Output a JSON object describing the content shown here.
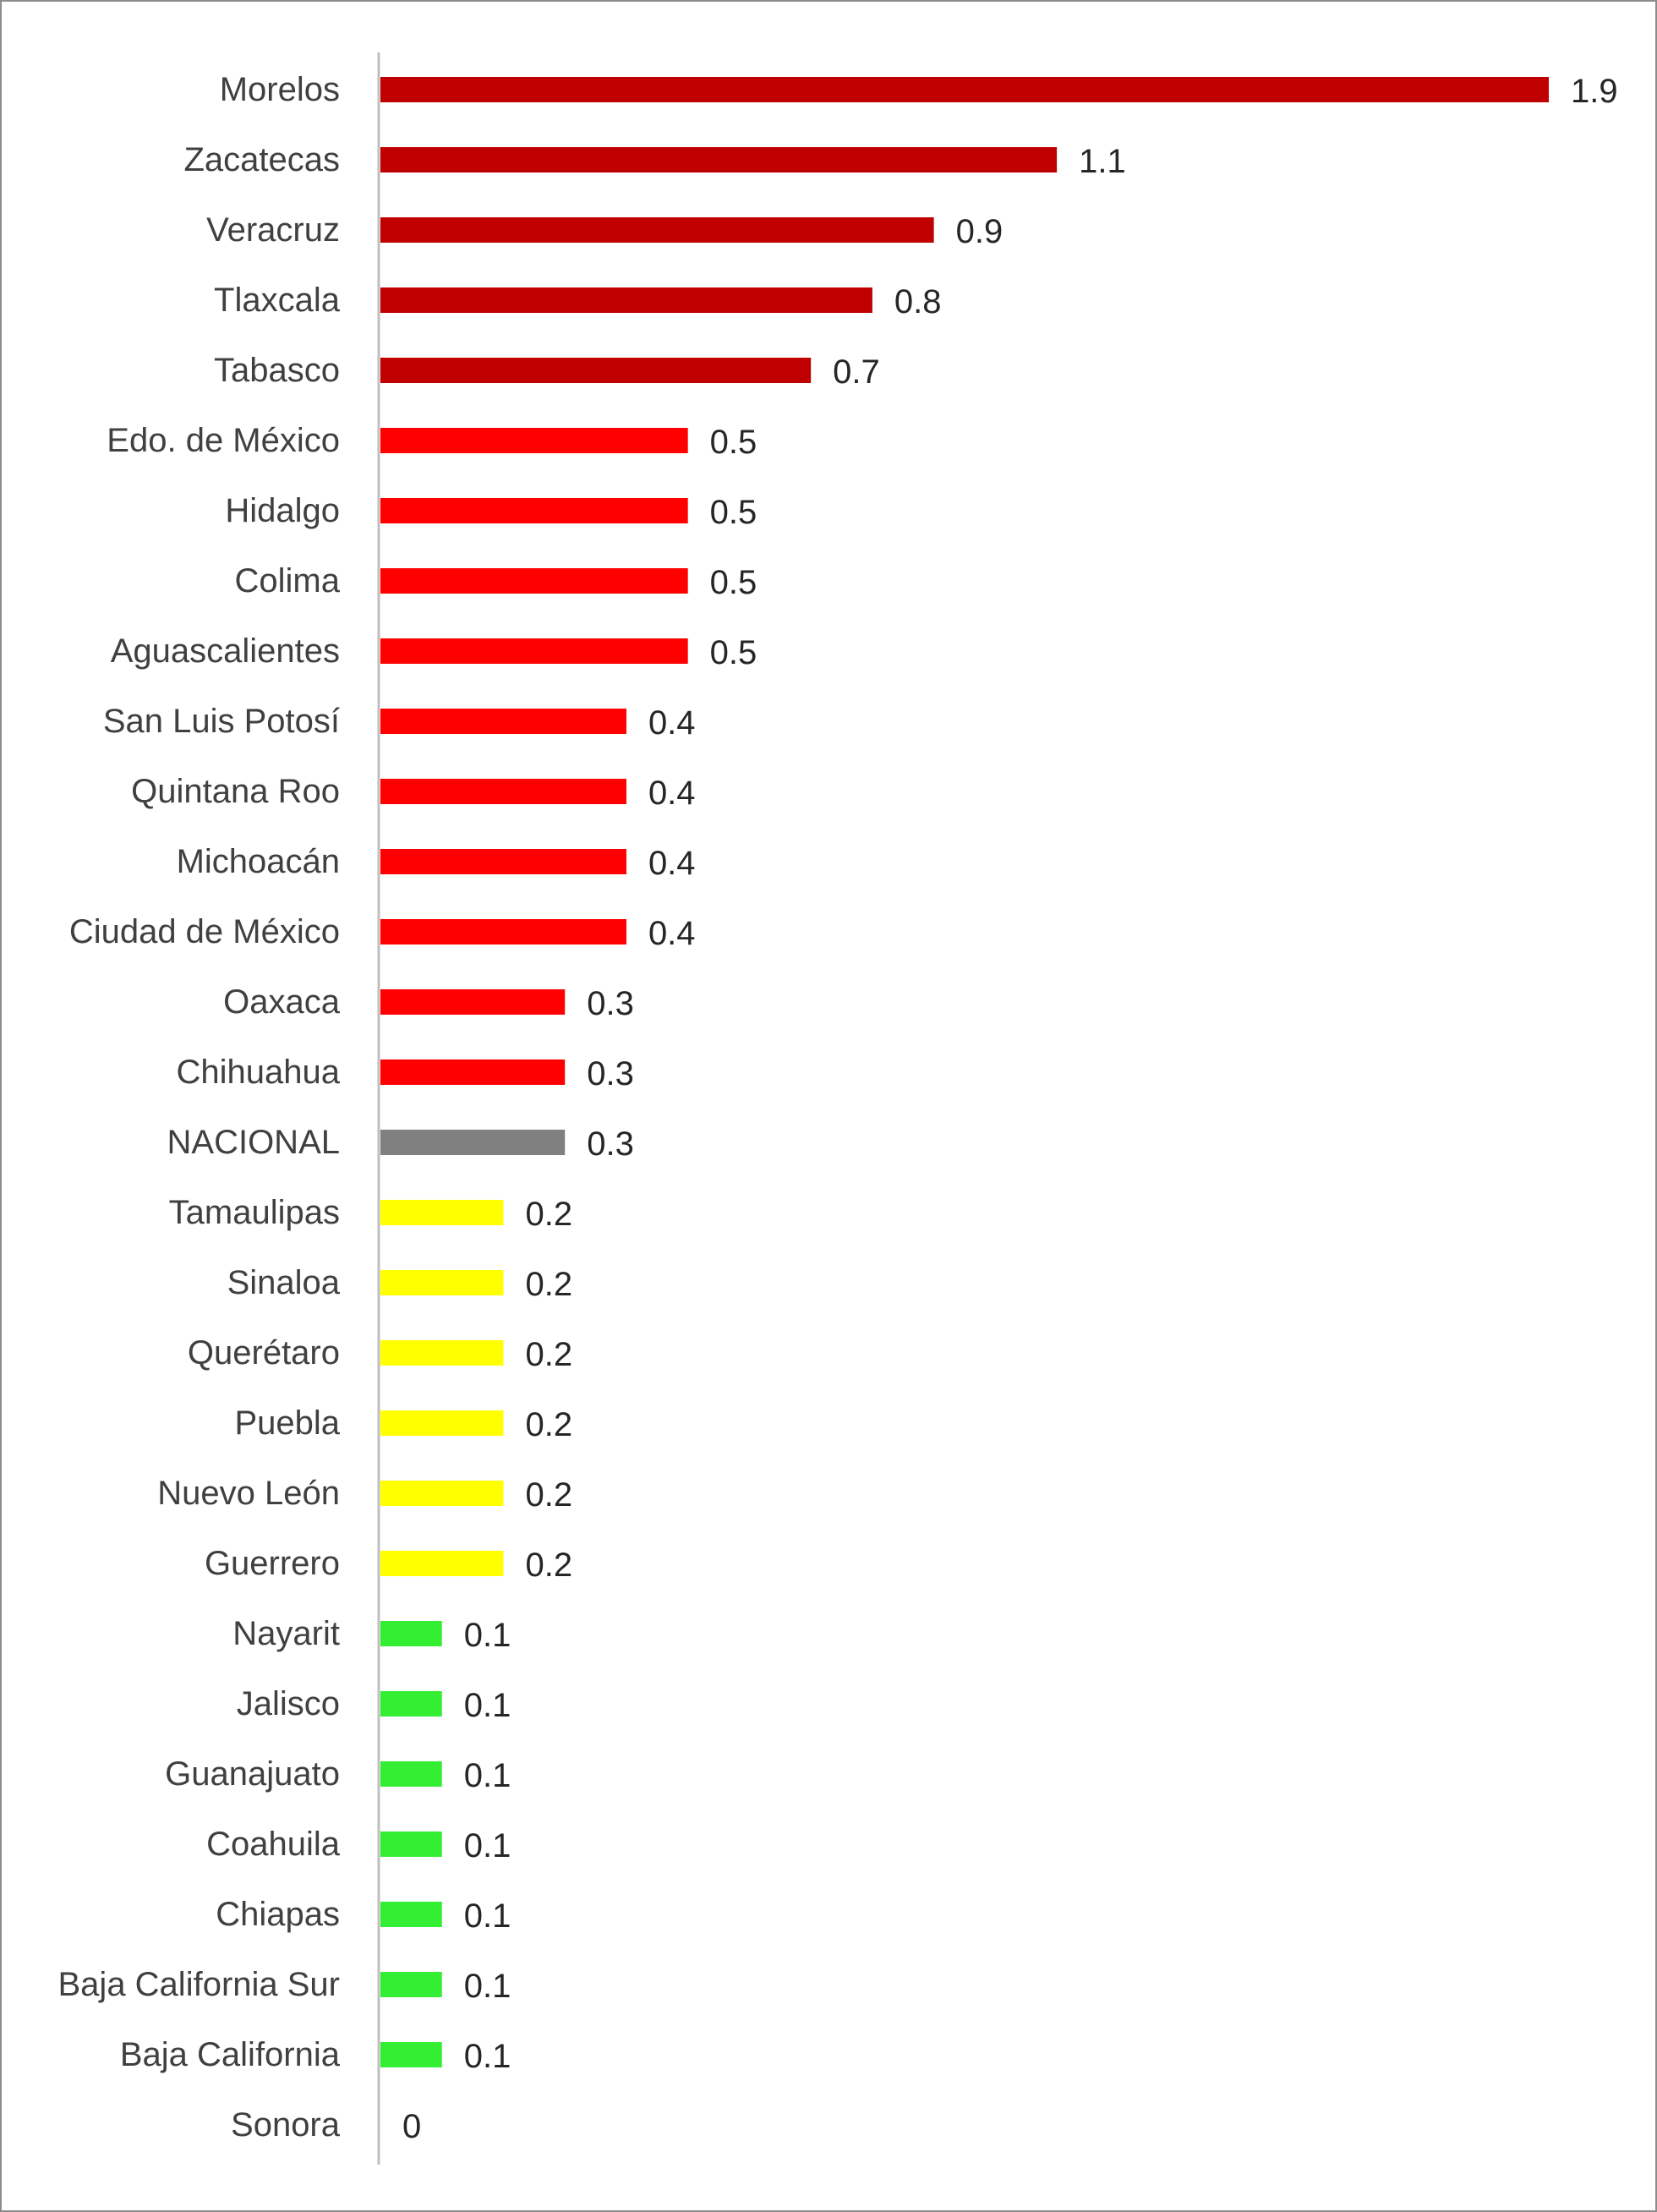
{
  "chart_data": {
    "type": "bar",
    "orientation": "horizontal",
    "title": "",
    "xlabel": "",
    "ylabel": "",
    "grid": false,
    "legend": "none",
    "xlim": [
      0,
      1.9
    ],
    "colors": {
      "dark_red": "#c00000",
      "red": "#ff0000",
      "gray": "#808080",
      "yellow": "#ffff00",
      "green": "#33ee33",
      "axis": "#bfbfbf"
    },
    "categories": [
      "Morelos",
      "Zacatecas",
      "Veracruz",
      "Tlaxcala",
      "Tabasco",
      "Edo. de México",
      "Hidalgo",
      "Colima",
      "Aguascalientes",
      "San Luis Potosí",
      "Quintana Roo",
      "Michoacán",
      "Ciudad de México",
      "Oaxaca",
      "Chihuahua",
      "NACIONAL",
      "Tamaulipas",
      "Sinaloa",
      "Querétaro",
      "Puebla",
      "Nuevo León",
      "Guerrero",
      "Nayarit",
      "Jalisco",
      "Guanajuato",
      "Coahuila",
      "Chiapas",
      "Baja California Sur",
      "Baja California",
      "Sonora"
    ],
    "values": [
      1.9,
      1.1,
      0.9,
      0.8,
      0.7,
      0.5,
      0.5,
      0.5,
      0.5,
      0.4,
      0.4,
      0.4,
      0.4,
      0.3,
      0.3,
      0.3,
      0.2,
      0.2,
      0.2,
      0.2,
      0.2,
      0.2,
      0.1,
      0.1,
      0.1,
      0.1,
      0.1,
      0.1,
      0.1,
      0
    ],
    "value_labels": [
      "1.9",
      "1.1",
      "0.9",
      "0.8",
      "0.7",
      "0.5",
      "0.5",
      "0.5",
      "0.5",
      "0.4",
      "0.4",
      "0.4",
      "0.4",
      "0.3",
      "0.3",
      "0.3",
      "0.2",
      "0.2",
      "0.2",
      "0.2",
      "0.2",
      "0.2",
      "0.1",
      "0.1",
      "0.1",
      "0.1",
      "0.1",
      "0.1",
      "0.1",
      "0"
    ],
    "bar_colors": [
      "#c00000",
      "#c00000",
      "#c00000",
      "#c00000",
      "#c00000",
      "#ff0000",
      "#ff0000",
      "#ff0000",
      "#ff0000",
      "#ff0000",
      "#ff0000",
      "#ff0000",
      "#ff0000",
      "#ff0000",
      "#ff0000",
      "#808080",
      "#ffff00",
      "#ffff00",
      "#ffff00",
      "#ffff00",
      "#ffff00",
      "#ffff00",
      "#33ee33",
      "#33ee33",
      "#33ee33",
      "#33ee33",
      "#33ee33",
      "#33ee33",
      "#33ee33",
      "#33ee33"
    ]
  }
}
